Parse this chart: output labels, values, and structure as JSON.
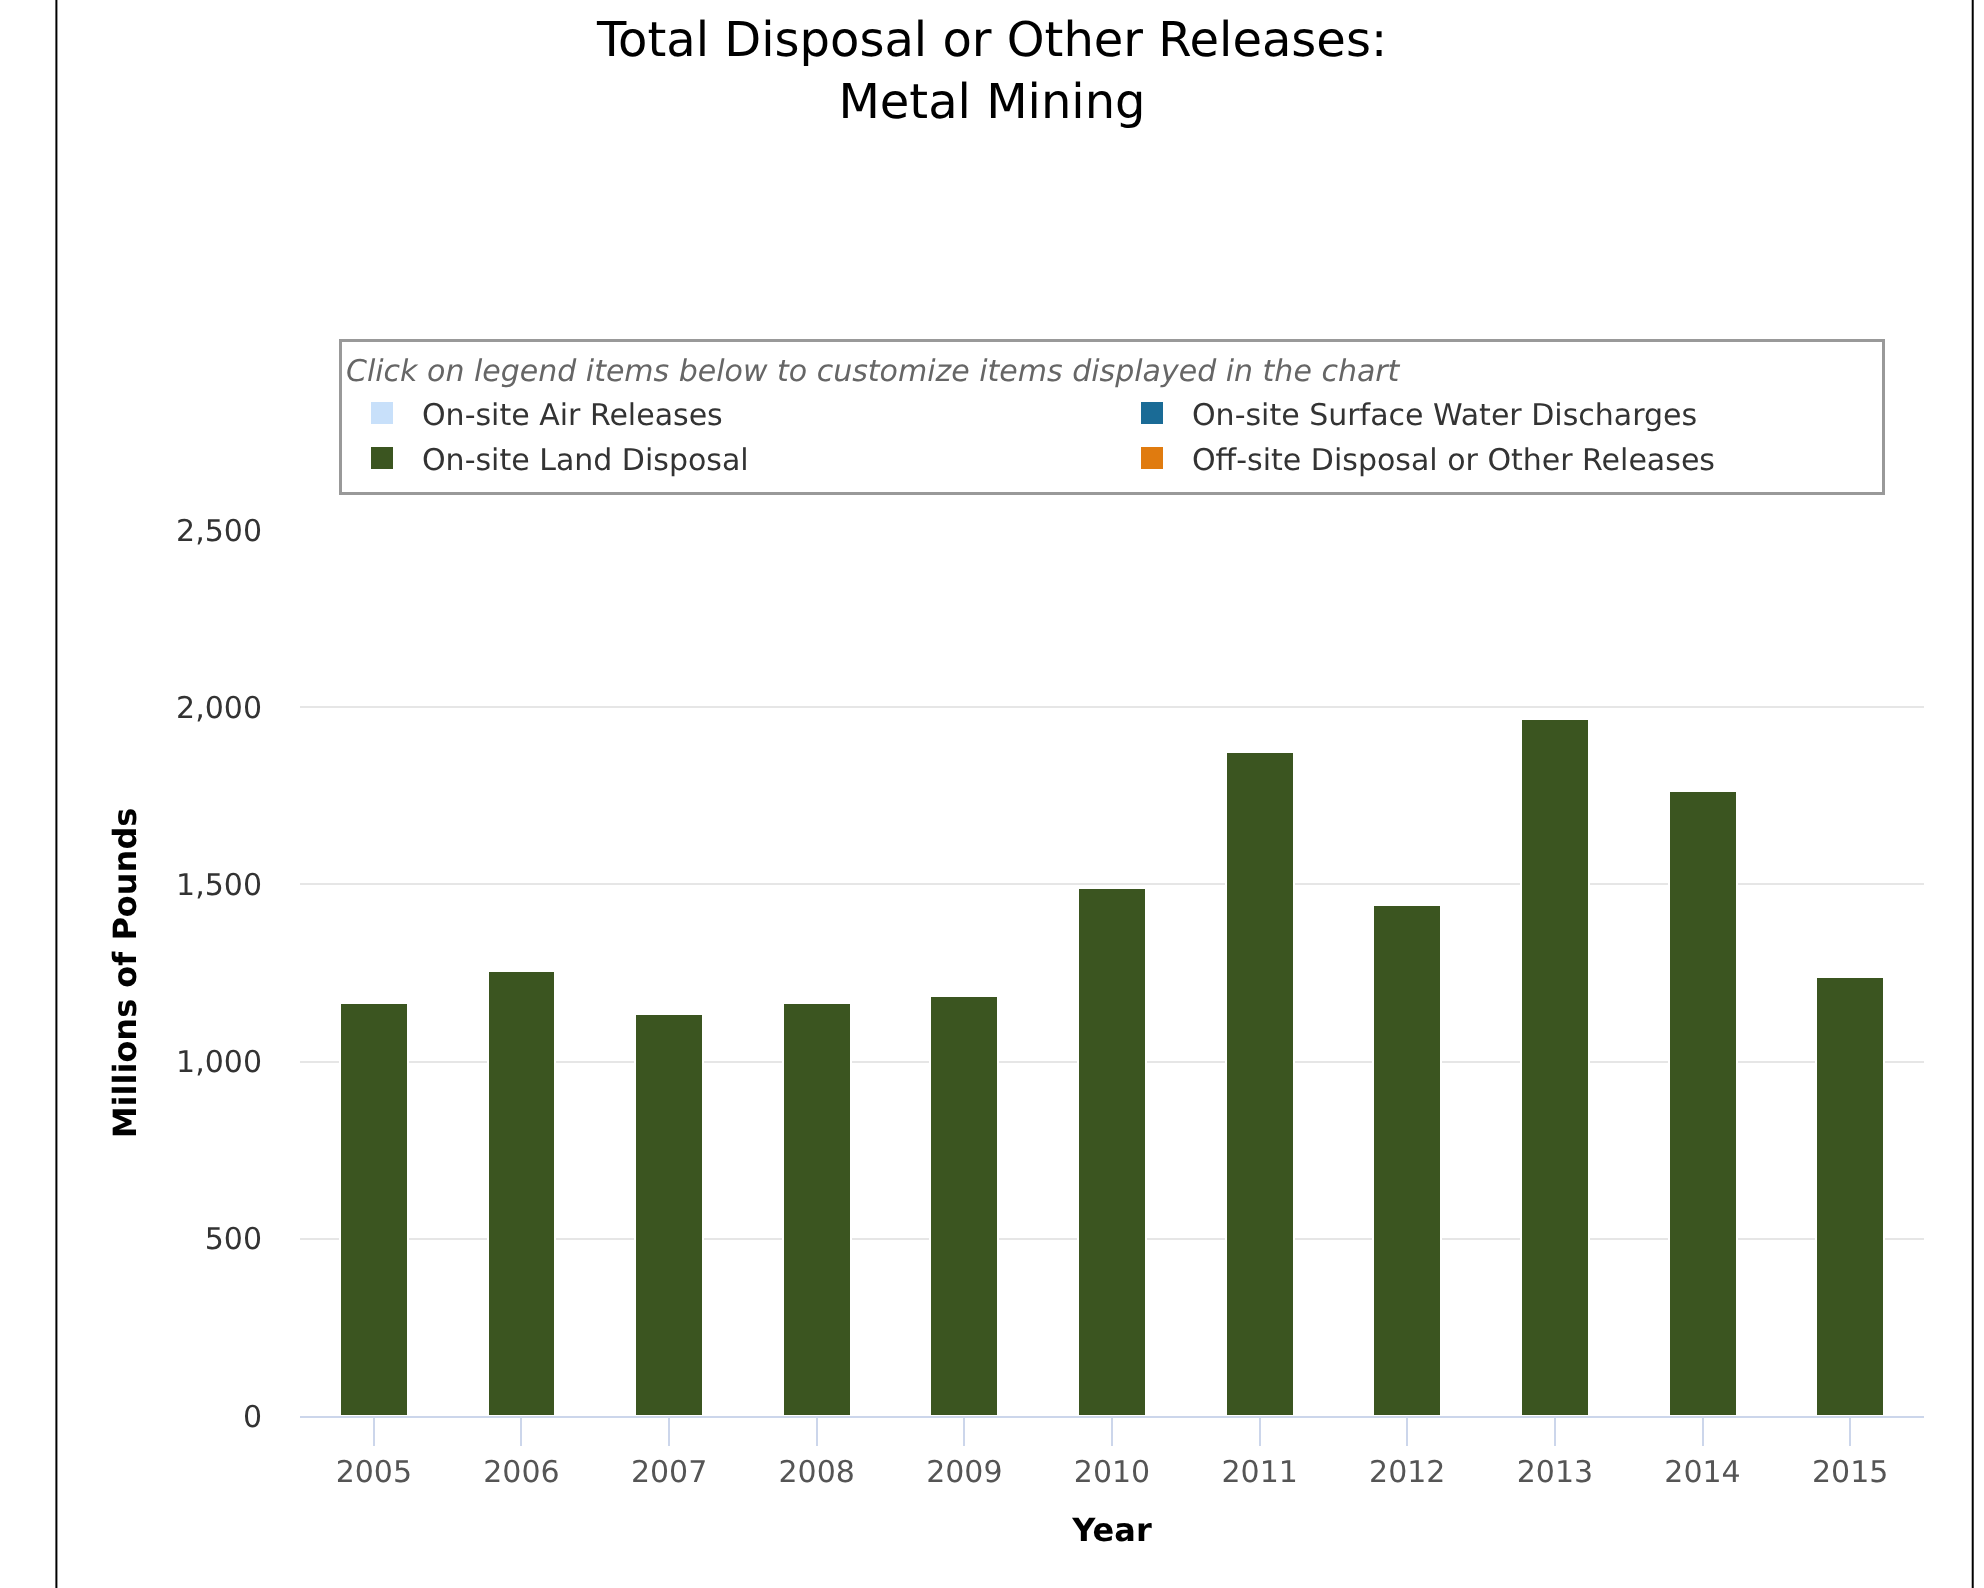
{
  "chart_data": {
    "type": "bar",
    "title": "Total Disposal or Other Releases:\nMetal Mining",
    "legend_title": "Click on legend items below to customize items displayed in the chart",
    "xlabel": "Year",
    "ylabel": "Millions of Pounds",
    "categories": [
      "2005",
      "2006",
      "2007",
      "2008",
      "2009",
      "2010",
      "2011",
      "2012",
      "2013",
      "2014",
      "2015"
    ],
    "series": [
      {
        "name": "Off-site Disposal or Other Releases",
        "color": "#e07b0f",
        "values": [
          null,
          null,
          null,
          null,
          null,
          null,
          null,
          null,
          null,
          null,
          null
        ]
      },
      {
        "name": "On-site Land Disposal",
        "color": "#3b5520",
        "values": [
          1165,
          1256,
          1135,
          1165,
          1184,
          1490,
          1875,
          1441,
          1966,
          1764,
          1239
        ]
      },
      {
        "name": "On-site Surface Water Discharges",
        "color": "#1a6b96",
        "values": [
          null,
          null,
          null,
          null,
          null,
          null,
          null,
          null,
          null,
          null,
          null
        ]
      },
      {
        "name": "On-site Air Releases",
        "color": "#c8e0fa",
        "values": [
          null,
          null,
          null,
          null,
          null,
          null,
          null,
          null,
          null,
          null,
          null
        ]
      }
    ],
    "stacked": true,
    "ylim": [
      0,
      2500
    ],
    "yticks": [
      {
        "value": 0,
        "label": "0"
      },
      {
        "value": 500,
        "label": "500"
      },
      {
        "value": 1000,
        "label": "1,000"
      },
      {
        "value": 1500,
        "label": "1,500"
      },
      {
        "value": 2000,
        "label": "2,000"
      },
      {
        "value": 2500,
        "label": "2,500"
      }
    ],
    "grid": "y",
    "legend": "top"
  }
}
